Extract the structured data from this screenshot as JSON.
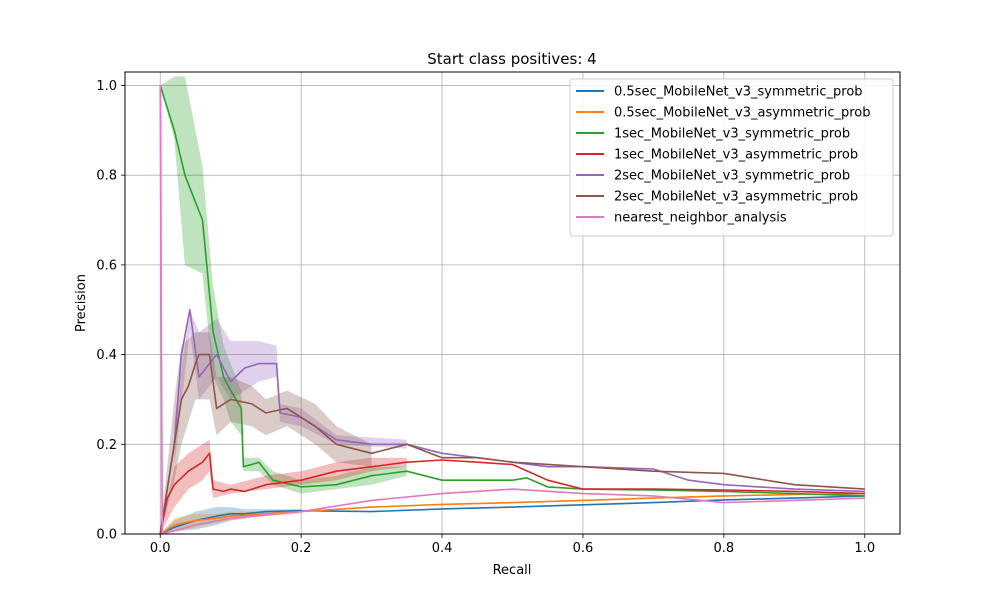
{
  "chart_data": {
    "type": "line",
    "title": "Start class positives: 4",
    "xlabel": "Recall",
    "ylabel": "Precision",
    "xlim": [
      -0.05,
      1.05
    ],
    "ylim": [
      0,
      1.03
    ],
    "xticks": [
      0,
      0.2,
      0.4,
      0.6,
      0.8,
      1
    ],
    "yticks": [
      0,
      0.2,
      0.4,
      0.6,
      0.8,
      1
    ],
    "xtick_labels": [
      "0.0",
      "0.2",
      "0.4",
      "0.6",
      "0.8",
      "1.0"
    ],
    "ytick_labels": [
      "0.0",
      "0.2",
      "0.4",
      "0.6",
      "0.8",
      "1.0"
    ],
    "grid": true,
    "legend_position": "top-right",
    "series": [
      {
        "name": "0.5sec_MobileNet_v3_symmetric_prob",
        "color": "#1f77b4",
        "points": [
          [
            0,
            0
          ],
          [
            0.02,
            0.015
          ],
          [
            0.05,
            0.03
          ],
          [
            0.08,
            0.04
          ],
          [
            0.1,
            0.045
          ],
          [
            0.12,
            0.045
          ],
          [
            0.15,
            0.05
          ],
          [
            0.2,
            0.052
          ],
          [
            0.3,
            0.05
          ],
          [
            0.4,
            0.056
          ],
          [
            0.5,
            0.06
          ],
          [
            0.6,
            0.065
          ],
          [
            0.7,
            0.07
          ],
          [
            0.8,
            0.076
          ],
          [
            0.9,
            0.08
          ],
          [
            1.0,
            0.085
          ]
        ],
        "band": [
          [
            0,
            0,
            0
          ],
          [
            0.02,
            0.005,
            0.03
          ],
          [
            0.05,
            0.01,
            0.05
          ],
          [
            0.08,
            0.02,
            0.06
          ],
          [
            0.1,
            0.03,
            0.06
          ],
          [
            0.12,
            0.035,
            0.055
          ],
          [
            0.15,
            0.045,
            0.055
          ],
          [
            0.2,
            0.05,
            0.055
          ]
        ]
      },
      {
        "name": "0.5sec_MobileNet_v3_asymmetric_prob",
        "color": "#ff7f0e",
        "points": [
          [
            0,
            0
          ],
          [
            0.02,
            0.02
          ],
          [
            0.05,
            0.03
          ],
          [
            0.08,
            0.035
          ],
          [
            0.1,
            0.04
          ],
          [
            0.15,
            0.045
          ],
          [
            0.2,
            0.05
          ],
          [
            0.3,
            0.06
          ],
          [
            0.4,
            0.066
          ],
          [
            0.5,
            0.07
          ],
          [
            0.6,
            0.075
          ],
          [
            0.7,
            0.08
          ],
          [
            0.8,
            0.085
          ],
          [
            0.9,
            0.088
          ],
          [
            1.0,
            0.09
          ]
        ],
        "band": [
          [
            0,
            0,
            0
          ],
          [
            0.02,
            0.005,
            0.035
          ],
          [
            0.05,
            0.015,
            0.045
          ],
          [
            0.08,
            0.025,
            0.045
          ],
          [
            0.1,
            0.03,
            0.05
          ],
          [
            0.15,
            0.04,
            0.05
          ],
          [
            0.2,
            0.045,
            0.055
          ]
        ]
      },
      {
        "name": "1sec_MobileNet_v3_symmetric_prob",
        "color": "#2ca02c",
        "points": [
          [
            0,
            1.0
          ],
          [
            0.02,
            0.9
          ],
          [
            0.035,
            0.8
          ],
          [
            0.06,
            0.7
          ],
          [
            0.075,
            0.45
          ],
          [
            0.09,
            0.35
          ],
          [
            0.1,
            0.32
          ],
          [
            0.115,
            0.28
          ],
          [
            0.118,
            0.15
          ],
          [
            0.13,
            0.155
          ],
          [
            0.14,
            0.16
          ],
          [
            0.15,
            0.14
          ],
          [
            0.16,
            0.12
          ],
          [
            0.2,
            0.105
          ],
          [
            0.25,
            0.11
          ],
          [
            0.3,
            0.13
          ],
          [
            0.35,
            0.14
          ],
          [
            0.4,
            0.12
          ],
          [
            0.45,
            0.12
          ],
          [
            0.5,
            0.12
          ],
          [
            0.52,
            0.125
          ],
          [
            0.55,
            0.105
          ],
          [
            0.6,
            0.1
          ],
          [
            0.7,
            0.098
          ],
          [
            0.8,
            0.095
          ],
          [
            0.9,
            0.09
          ],
          [
            1.0,
            0.085
          ]
        ],
        "band": [
          [
            0,
            1.0,
            1.0
          ],
          [
            0.02,
            0.88,
            1.02
          ],
          [
            0.035,
            0.6,
            1.02
          ],
          [
            0.06,
            0.58,
            0.82
          ],
          [
            0.075,
            0.35,
            0.55
          ],
          [
            0.09,
            0.3,
            0.42
          ],
          [
            0.1,
            0.25,
            0.38
          ],
          [
            0.115,
            0.22,
            0.32
          ],
          [
            0.118,
            0.14,
            0.17
          ],
          [
            0.14,
            0.14,
            0.17
          ],
          [
            0.16,
            0.11,
            0.14
          ],
          [
            0.2,
            0.09,
            0.12
          ],
          [
            0.25,
            0.1,
            0.13
          ],
          [
            0.3,
            0.11,
            0.15
          ],
          [
            0.35,
            0.13,
            0.15
          ]
        ]
      },
      {
        "name": "1sec_MobileNet_v3_asymmetric_prob",
        "color": "#d62728",
        "points": [
          [
            0,
            0
          ],
          [
            0.01,
            0.08
          ],
          [
            0.02,
            0.11
          ],
          [
            0.04,
            0.14
          ],
          [
            0.06,
            0.16
          ],
          [
            0.07,
            0.18
          ],
          [
            0.075,
            0.1
          ],
          [
            0.09,
            0.095
          ],
          [
            0.1,
            0.1
          ],
          [
            0.12,
            0.095
          ],
          [
            0.15,
            0.11
          ],
          [
            0.2,
            0.12
          ],
          [
            0.25,
            0.14
          ],
          [
            0.3,
            0.15
          ],
          [
            0.35,
            0.16
          ],
          [
            0.4,
            0.165
          ],
          [
            0.45,
            0.16
          ],
          [
            0.5,
            0.155
          ],
          [
            0.55,
            0.12
          ],
          [
            0.6,
            0.1
          ],
          [
            0.7,
            0.1
          ],
          [
            0.8,
            0.098
          ],
          [
            0.9,
            0.095
          ],
          [
            1.0,
            0.09
          ]
        ],
        "band": [
          [
            0,
            0,
            0
          ],
          [
            0.02,
            0.06,
            0.15
          ],
          [
            0.04,
            0.1,
            0.18
          ],
          [
            0.06,
            0.12,
            0.2
          ],
          [
            0.07,
            0.14,
            0.21
          ],
          [
            0.075,
            0.08,
            0.12
          ],
          [
            0.1,
            0.09,
            0.11
          ],
          [
            0.15,
            0.1,
            0.13
          ],
          [
            0.2,
            0.11,
            0.14
          ],
          [
            0.25,
            0.12,
            0.16
          ],
          [
            0.3,
            0.14,
            0.17
          ],
          [
            0.35,
            0.15,
            0.17
          ]
        ]
      },
      {
        "name": "2sec_MobileNet_v3_symmetric_prob",
        "color": "#9467bd",
        "points": [
          [
            0,
            0
          ],
          [
            0.02,
            0.2
          ],
          [
            0.03,
            0.4
          ],
          [
            0.042,
            0.5
          ],
          [
            0.055,
            0.35
          ],
          [
            0.07,
            0.38
          ],
          [
            0.08,
            0.4
          ],
          [
            0.1,
            0.34
          ],
          [
            0.12,
            0.37
          ],
          [
            0.14,
            0.38
          ],
          [
            0.165,
            0.38
          ],
          [
            0.17,
            0.27
          ],
          [
            0.2,
            0.26
          ],
          [
            0.22,
            0.24
          ],
          [
            0.25,
            0.21
          ],
          [
            0.3,
            0.2
          ],
          [
            0.35,
            0.2
          ],
          [
            0.4,
            0.18
          ],
          [
            0.45,
            0.17
          ],
          [
            0.5,
            0.16
          ],
          [
            0.55,
            0.15
          ],
          [
            0.6,
            0.15
          ],
          [
            0.7,
            0.145
          ],
          [
            0.75,
            0.12
          ],
          [
            0.8,
            0.11
          ],
          [
            0.9,
            0.1
          ],
          [
            1.0,
            0.095
          ]
        ],
        "band": [
          [
            0.02,
            0.15,
            0.25
          ],
          [
            0.042,
            0.45,
            0.5
          ],
          [
            0.055,
            0.3,
            0.45
          ],
          [
            0.08,
            0.35,
            0.48
          ],
          [
            0.1,
            0.3,
            0.43
          ],
          [
            0.14,
            0.34,
            0.43
          ],
          [
            0.165,
            0.35,
            0.42
          ],
          [
            0.17,
            0.25,
            0.29
          ],
          [
            0.2,
            0.24,
            0.28
          ],
          [
            0.25,
            0.2,
            0.22
          ],
          [
            0.35,
            0.19,
            0.21
          ]
        ]
      },
      {
        "name": "2sec_MobileNet_v3_asymmetric_prob",
        "color": "#8c564b",
        "points": [
          [
            0,
            0
          ],
          [
            0.01,
            0.1
          ],
          [
            0.02,
            0.2
          ],
          [
            0.03,
            0.3
          ],
          [
            0.04,
            0.33
          ],
          [
            0.05,
            0.38
          ],
          [
            0.055,
            0.4
          ],
          [
            0.07,
            0.4
          ],
          [
            0.08,
            0.28
          ],
          [
            0.1,
            0.3
          ],
          [
            0.13,
            0.29
          ],
          [
            0.15,
            0.27
          ],
          [
            0.18,
            0.28
          ],
          [
            0.22,
            0.24
          ],
          [
            0.25,
            0.2
          ],
          [
            0.3,
            0.18
          ],
          [
            0.35,
            0.2
          ],
          [
            0.4,
            0.17
          ],
          [
            0.45,
            0.17
          ],
          [
            0.5,
            0.16
          ],
          [
            0.6,
            0.15
          ],
          [
            0.7,
            0.14
          ],
          [
            0.8,
            0.135
          ],
          [
            0.9,
            0.11
          ],
          [
            1.0,
            0.1
          ]
        ],
        "band": [
          [
            0,
            0,
            0
          ],
          [
            0.02,
            0.12,
            0.3
          ],
          [
            0.03,
            0.2,
            0.42
          ],
          [
            0.05,
            0.3,
            0.45
          ],
          [
            0.07,
            0.3,
            0.45
          ],
          [
            0.08,
            0.22,
            0.35
          ],
          [
            0.1,
            0.25,
            0.35
          ],
          [
            0.13,
            0.24,
            0.33
          ],
          [
            0.15,
            0.22,
            0.3
          ],
          [
            0.18,
            0.24,
            0.32
          ],
          [
            0.22,
            0.2,
            0.29
          ],
          [
            0.25,
            0.16,
            0.24
          ],
          [
            0.3,
            0.15,
            0.2
          ]
        ]
      },
      {
        "name": "nearest_neighbor_analysis",
        "color": "#e377c2",
        "points": [
          [
            0,
            1.0
          ],
          [
            0.003,
            0
          ],
          [
            0.05,
            0.02
          ],
          [
            0.1,
            0.035
          ],
          [
            0.2,
            0.05
          ],
          [
            0.3,
            0.075
          ],
          [
            0.4,
            0.09
          ],
          [
            0.5,
            0.1
          ],
          [
            0.6,
            0.09
          ],
          [
            0.7,
            0.085
          ],
          [
            0.8,
            0.07
          ],
          [
            0.9,
            0.075
          ],
          [
            1.0,
            0.08
          ]
        ],
        "band": [
          [
            0.0,
            0,
            1.0
          ],
          [
            0.003,
            0,
            1.0
          ]
        ]
      }
    ]
  }
}
